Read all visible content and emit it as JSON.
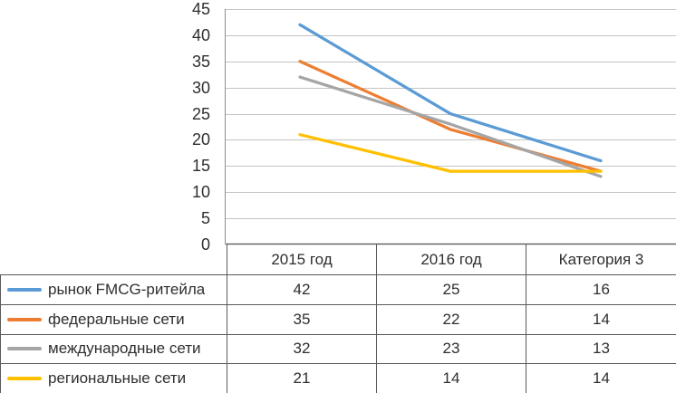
{
  "chart_data": {
    "type": "line",
    "categories": [
      "2015 год",
      "2016 год",
      "Категория 3"
    ],
    "series": [
      {
        "name": "рынок FMCG-ритейла",
        "values": [
          42,
          25,
          16
        ],
        "color": "#5B9BD5"
      },
      {
        "name": "федеральные сети",
        "values": [
          35,
          22,
          14
        ],
        "color": "#ED7D31"
      },
      {
        "name": "международные сети",
        "values": [
          32,
          23,
          13
        ],
        "color": "#A5A5A5"
      },
      {
        "name": "региональные сети",
        "values": [
          21,
          14,
          14
        ],
        "color": "#FFC000"
      }
    ],
    "title": "",
    "xlabel": "",
    "ylabel": "",
    "ylim": [
      0,
      45
    ],
    "ytick_step": 5,
    "yticks": [
      "45",
      "40",
      "35",
      "30",
      "25",
      "20",
      "15",
      "10",
      "5",
      "0"
    ],
    "grid": true,
    "legend_position": "left-of-data-table"
  },
  "colors": {
    "series_blue": "#5B9BD5",
    "series_orange": "#ED7D31",
    "series_gray": "#A5A5A5",
    "series_yellow": "#FFC000",
    "gridline": "#C4C4C4",
    "axis_line": "#8E8E8E",
    "table_border": "#595959",
    "text": "#2E2E2E",
    "background": "#FFFFFF"
  }
}
